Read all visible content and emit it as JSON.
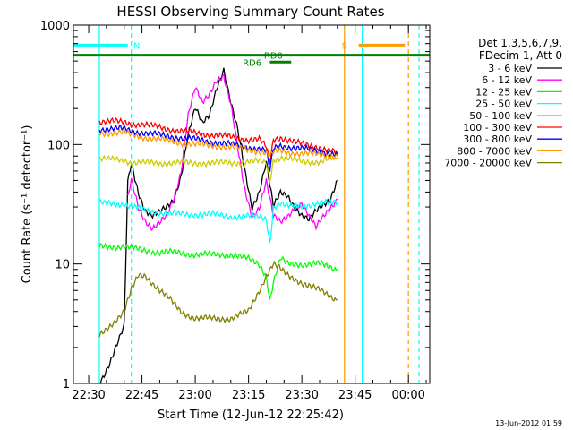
{
  "chart_data": {
    "type": "line",
    "title": "HESSI Observing Summary Count Rates",
    "xlabel": "Start Time (12-Jun-12 22:25:42)",
    "ylabel": "Count Rate (s⁻¹ detector⁻¹)",
    "x_tick_labels": [
      "22:30",
      "22:45",
      "23:00",
      "23:15",
      "23:30",
      "23:45",
      "00:00"
    ],
    "x_tick_minutes": [
      30,
      45,
      60,
      75,
      90,
      105,
      120
    ],
    "y_scale": "log",
    "y_tick_labels": [
      "1",
      "10",
      "100",
      "1000"
    ],
    "ylim": [
      1,
      1000
    ],
    "xlim_minutes": [
      25.7,
      126
    ],
    "legend": {
      "title_lines": [
        "Det 1,3,5,6,7,9,",
        "FDecim 1, Att 0"
      ],
      "placement": "right"
    },
    "series": [
      {
        "name": "3 - 6 keV",
        "color": "#000000",
        "x": [
          33,
          36,
          39,
          40,
          41,
          42,
          44,
          46,
          48,
          50,
          52,
          54,
          56,
          58,
          60,
          62,
          64,
          66,
          68,
          70,
          72,
          74,
          76,
          78,
          80,
          81,
          82,
          84,
          86,
          88,
          90,
          92,
          94,
          96,
          98,
          100
        ],
        "y": [
          1,
          1.5,
          2.5,
          3,
          48,
          70,
          40,
          28,
          25,
          27,
          30,
          35,
          55,
          120,
          200,
          150,
          180,
          300,
          420,
          220,
          130,
          60,
          30,
          40,
          70,
          45,
          30,
          40,
          38,
          30,
          25,
          23,
          28,
          32,
          35,
          50
        ]
      },
      {
        "name": "6 - 12 keV",
        "color": "#ff00ff",
        "x": [
          41,
          42,
          44,
          46,
          48,
          50,
          52,
          54,
          56,
          58,
          60,
          62,
          64,
          66,
          68,
          70,
          72,
          74,
          76,
          78,
          80,
          82,
          84,
          86,
          88,
          90,
          92,
          94,
          96,
          98,
          100
        ],
        "y": [
          35,
          50,
          30,
          23,
          20,
          22,
          25,
          35,
          60,
          180,
          300,
          220,
          260,
          350,
          380,
          220,
          90,
          40,
          25,
          30,
          50,
          25,
          22,
          25,
          30,
          32,
          25,
          20,
          25,
          30,
          35
        ]
      },
      {
        "name": "12 - 25 keV",
        "color": "#00ff00",
        "x": [
          33,
          40,
          42,
          46,
          50,
          55,
          60,
          65,
          70,
          75,
          78,
          80,
          81,
          82,
          84,
          86,
          90,
          95,
          100
        ],
        "y": [
          14,
          14,
          13.5,
          13,
          12.5,
          12.5,
          12,
          12,
          12,
          11,
          10,
          8,
          5,
          7,
          11,
          10,
          10,
          10,
          9
        ]
      },
      {
        "name": "25 - 50 keV",
        "color": "#00ffff",
        "x": [
          33,
          40,
          42,
          46,
          50,
          55,
          60,
          65,
          70,
          75,
          78,
          80,
          81,
          82,
          84,
          86,
          90,
          95,
          100
        ],
        "y": [
          32,
          32,
          30,
          28,
          27,
          26,
          26,
          26,
          25,
          25,
          25,
          24,
          15,
          30,
          32,
          30,
          31,
          32,
          33
        ]
      },
      {
        "name": "50 - 100 keV",
        "color": "#cccc00",
        "x": [
          33,
          40,
          42,
          46,
          50,
          55,
          60,
          65,
          70,
          75,
          78,
          80,
          81,
          82,
          84,
          86,
          90,
          95,
          100
        ],
        "y": [
          75,
          75,
          70,
          70,
          70,
          70,
          70,
          70,
          70,
          72,
          72,
          70,
          50,
          75,
          78,
          76,
          72,
          72,
          78
        ]
      },
      {
        "name": "100 - 300 keV",
        "color": "#ff0000",
        "x": [
          33,
          40,
          42,
          46,
          50,
          55,
          60,
          65,
          70,
          75,
          78,
          80,
          81,
          82,
          84,
          86,
          90,
          95,
          100
        ],
        "y": [
          155,
          155,
          150,
          145,
          140,
          130,
          125,
          120,
          115,
          110,
          110,
          95,
          70,
          110,
          115,
          110,
          100,
          95,
          85
        ]
      },
      {
        "name": "300 - 800 keV",
        "color": "#0000ff",
        "x": [
          33,
          40,
          42,
          46,
          50,
          55,
          60,
          65,
          70,
          75,
          78,
          80,
          81,
          82,
          84,
          86,
          90,
          95,
          100
        ],
        "y": [
          135,
          135,
          130,
          125,
          120,
          115,
          110,
          105,
          100,
          95,
          92,
          88,
          60,
          92,
          98,
          96,
          92,
          88,
          82
        ]
      },
      {
        "name": "800 - 7000 keV",
        "color": "#ff9900",
        "x": [
          33,
          40,
          42,
          46,
          50,
          55,
          60,
          65,
          70,
          75,
          78,
          80,
          81,
          82,
          84,
          86,
          90,
          95,
          100
        ],
        "y": [
          125,
          125,
          120,
          115,
          110,
          105,
          100,
          98,
          95,
          90,
          88,
          85,
          80,
          85,
          88,
          86,
          84,
          82,
          80
        ]
      },
      {
        "name": "7000 - 20000 keV",
        "color": "#808000",
        "x": [
          33,
          40,
          42,
          44,
          46,
          50,
          53,
          56,
          60,
          65,
          70,
          75,
          78,
          80,
          82,
          84,
          86,
          90,
          95,
          100
        ],
        "y": [
          2.5,
          4,
          6,
          8,
          8,
          6,
          5,
          4,
          3.5,
          3.5,
          3.5,
          4,
          6,
          8,
          10,
          9,
          8,
          7,
          6,
          5
        ]
      }
    ],
    "attenuator_state_lines": [
      {
        "label": "N",
        "color": "#00ffff",
        "y": 680,
        "x_from": 25.7,
        "x_to": 41,
        "label_at": 43.5
      },
      {
        "label": "S",
        "color": "#ff9900",
        "y": 680,
        "x_from": 106,
        "x_to": 119,
        "label_at": 102
      },
      {
        "label": "RD0",
        "color": "#008000",
        "y": 560,
        "x_from": 25.7,
        "x_to": 126,
        "label_at": 82
      },
      {
        "label": "RD6",
        "color": "#008000",
        "y": 490,
        "x_from": 81,
        "x_to": 87,
        "label_at": 76
      }
    ],
    "vertical_markers": [
      {
        "minute": 33,
        "color": "#00ffff",
        "style": "solid"
      },
      {
        "minute": 42,
        "color": "#00ffff",
        "style": "dashed"
      },
      {
        "minute": 102,
        "color": "#ff9900",
        "style": "solid"
      },
      {
        "minute": 107,
        "color": "#00ffff",
        "style": "solid"
      },
      {
        "minute": 120,
        "color": "#ff9900",
        "style": "dashed"
      },
      {
        "minute": 123,
        "color": "#00ffff",
        "style": "dashed"
      }
    ]
  },
  "footer": {
    "timestamp": "13-Jun-2012 01:59"
  }
}
